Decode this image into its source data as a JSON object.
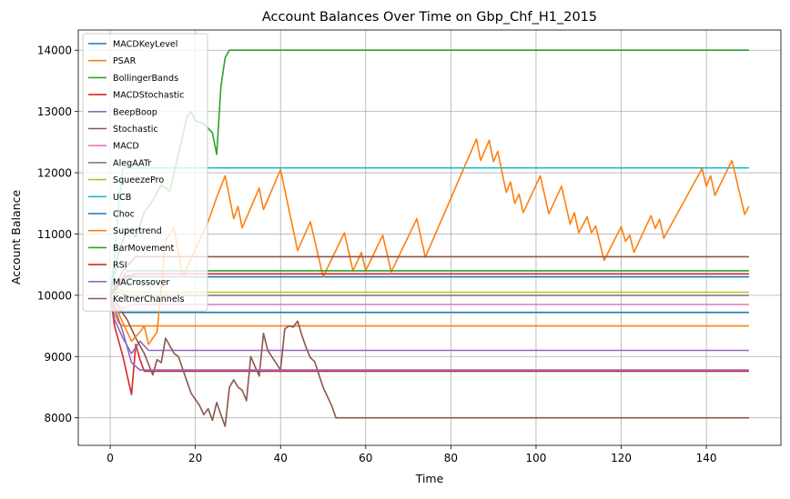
{
  "chart_data": {
    "type": "line",
    "title": "Account Balances Over Time on Gbp_Chf_H1_2015",
    "xlabel": "Time",
    "ylabel": "Account Balance",
    "xlim": [
      -7.5,
      157.5
    ],
    "ylim": [
      7550,
      14330
    ],
    "xticks": [
      0,
      20,
      40,
      60,
      80,
      100,
      120,
      140
    ],
    "yticks": [
      8000,
      9000,
      10000,
      11000,
      12000,
      13000,
      14000
    ],
    "grid": true,
    "legend_position": "upper-left",
    "series": [
      {
        "name": "MACDKeyLevel",
        "color": "#1f77b4",
        "points": [
          [
            0,
            10000
          ],
          [
            1,
            9800
          ],
          [
            2,
            9720
          ],
          [
            150,
            9720
          ]
        ]
      },
      {
        "name": "PSAR",
        "color": "#ff7f0e",
        "points": [
          [
            0,
            10000
          ],
          [
            1,
            9700
          ],
          [
            2,
            9550
          ],
          [
            3,
            9500
          ],
          [
            150,
            9500
          ]
        ]
      },
      {
        "name": "BollingerBands",
        "color": "#2ca02c",
        "points": [
          [
            0,
            10000
          ],
          [
            2,
            10700
          ],
          [
            4,
            11100
          ],
          [
            6,
            10950
          ],
          [
            8,
            11350
          ],
          [
            10,
            11550
          ],
          [
            12,
            11800
          ],
          [
            14,
            11700
          ],
          [
            16,
            12300
          ],
          [
            18,
            12900
          ],
          [
            19,
            13000
          ],
          [
            20,
            12850
          ],
          [
            22,
            12800
          ],
          [
            24,
            12650
          ],
          [
            25,
            12300
          ],
          [
            26,
            13400
          ],
          [
            27,
            13880
          ],
          [
            28,
            14000
          ],
          [
            150,
            14000
          ]
        ]
      },
      {
        "name": "MACDStochastic",
        "color": "#d62728",
        "points": [
          [
            0,
            10000
          ],
          [
            1,
            9500
          ],
          [
            3,
            9000
          ],
          [
            5,
            8380
          ],
          [
            6,
            9200
          ],
          [
            7,
            8950
          ],
          [
            8,
            8760
          ],
          [
            150,
            8760
          ]
        ]
      },
      {
        "name": "BeepBoop",
        "color": "#9467bd",
        "points": [
          [
            0,
            10000
          ],
          [
            1,
            9600
          ],
          [
            3,
            9300
          ],
          [
            5,
            9050
          ],
          [
            7,
            9250
          ],
          [
            9,
            9100
          ],
          [
            150,
            9100
          ]
        ]
      },
      {
        "name": "Stochastic",
        "color": "#8c564b",
        "points": [
          [
            0,
            10000
          ],
          [
            2,
            9800
          ],
          [
            4,
            9600
          ],
          [
            6,
            9300
          ],
          [
            8,
            9050
          ],
          [
            10,
            8700
          ],
          [
            11,
            8950
          ],
          [
            12,
            8900
          ],
          [
            13,
            9300
          ],
          [
            15,
            9050
          ],
          [
            16,
            9000
          ],
          [
            18,
            8600
          ],
          [
            19,
            8400
          ],
          [
            20,
            8300
          ],
          [
            21,
            8200
          ],
          [
            22,
            8050
          ],
          [
            23,
            8150
          ],
          [
            24,
            7960
          ],
          [
            25,
            8250
          ],
          [
            26,
            8050
          ],
          [
            27,
            7860
          ],
          [
            28,
            8500
          ],
          [
            29,
            8620
          ],
          [
            30,
            8500
          ],
          [
            31,
            8450
          ],
          [
            32,
            8280
          ],
          [
            33,
            9000
          ],
          [
            35,
            8680
          ],
          [
            36,
            9380
          ],
          [
            37,
            9100
          ],
          [
            40,
            8780
          ],
          [
            41,
            9450
          ],
          [
            42,
            9500
          ],
          [
            43,
            9480
          ],
          [
            44,
            9580
          ],
          [
            45,
            9350
          ],
          [
            46,
            9150
          ],
          [
            47,
            8980
          ],
          [
            48,
            8920
          ],
          [
            50,
            8500
          ],
          [
            52,
            8200
          ],
          [
            53,
            8000
          ],
          [
            150,
            8000
          ]
        ]
      },
      {
        "name": "MACD",
        "color": "#e377c2",
        "points": [
          [
            0,
            10000
          ],
          [
            1,
            9900
          ],
          [
            3,
            9780
          ],
          [
            5,
            9850
          ],
          [
            150,
            9850
          ]
        ]
      },
      {
        "name": "AlegAATr",
        "color": "#7f7f7f",
        "points": [
          [
            0,
            10000
          ],
          [
            2,
            10050
          ],
          [
            4,
            10000
          ],
          [
            150,
            10000
          ]
        ]
      },
      {
        "name": "SqueezePro",
        "color": "#bcbd22",
        "points": [
          [
            0,
            10000
          ],
          [
            2,
            10100
          ],
          [
            4,
            10050
          ],
          [
            150,
            10050
          ]
        ]
      },
      {
        "name": "UCB",
        "color": "#17becf",
        "points": [
          [
            0,
            10000
          ],
          [
            1,
            10600
          ],
          [
            2,
            11500
          ],
          [
            3,
            12080
          ],
          [
            150,
            12080
          ]
        ]
      },
      {
        "name": "Choc",
        "color": "#1f77b4",
        "points": [
          [
            0,
            10000
          ],
          [
            2,
            10150
          ],
          [
            4,
            10300
          ],
          [
            150,
            10300
          ]
        ]
      },
      {
        "name": "Supertrend",
        "color": "#ff7f0e",
        "points": [
          [
            0,
            10000
          ],
          [
            5,
            9250
          ],
          [
            7,
            9400
          ],
          [
            8,
            9500
          ],
          [
            9,
            9200
          ],
          [
            11,
            9400
          ],
          [
            13,
            10900
          ],
          [
            15,
            11100
          ],
          [
            17,
            10300
          ],
          [
            19,
            10600
          ],
          [
            21,
            10900
          ],
          [
            23,
            11200
          ],
          [
            25,
            11600
          ],
          [
            27,
            11950
          ],
          [
            29,
            11250
          ],
          [
            30,
            11450
          ],
          [
            31,
            11100
          ],
          [
            35,
            11750
          ],
          [
            36,
            11400
          ],
          [
            40,
            12050
          ],
          [
            44,
            10730
          ],
          [
            47,
            11200
          ],
          [
            50,
            10300
          ],
          [
            55,
            11020
          ],
          [
            57,
            10400
          ],
          [
            59,
            10700
          ],
          [
            60,
            10400
          ],
          [
            64,
            10980
          ],
          [
            66,
            10380
          ],
          [
            72,
            11250
          ],
          [
            74,
            10620
          ],
          [
            86,
            12550
          ],
          [
            87,
            12200
          ],
          [
            89,
            12530
          ],
          [
            90,
            12180
          ],
          [
            91,
            12350
          ],
          [
            93,
            11680
          ],
          [
            94,
            11850
          ],
          [
            95,
            11500
          ],
          [
            96,
            11650
          ],
          [
            97,
            11350
          ],
          [
            101,
            11950
          ],
          [
            103,
            11330
          ],
          [
            106,
            11780
          ],
          [
            108,
            11160
          ],
          [
            109,
            11350
          ],
          [
            110,
            11020
          ],
          [
            112,
            11280
          ],
          [
            113,
            11020
          ],
          [
            114,
            11130
          ],
          [
            116,
            10570
          ],
          [
            120,
            11120
          ],
          [
            121,
            10880
          ],
          [
            122,
            10980
          ],
          [
            123,
            10700
          ],
          [
            127,
            11300
          ],
          [
            128,
            11090
          ],
          [
            129,
            11240
          ],
          [
            130,
            10930
          ],
          [
            139,
            12070
          ],
          [
            140,
            11780
          ],
          [
            141,
            11950
          ],
          [
            142,
            11630
          ],
          [
            146,
            12200
          ],
          [
            149,
            11320
          ],
          [
            150,
            11450
          ]
        ]
      },
      {
        "name": "BarMovement",
        "color": "#2ca02c",
        "points": [
          [
            0,
            10000
          ],
          [
            2,
            10200
          ],
          [
            4,
            10400
          ],
          [
            150,
            10400
          ]
        ]
      },
      {
        "name": "RSI",
        "color": "#d62728",
        "points": [
          [
            0,
            10000
          ],
          [
            3,
            10300
          ],
          [
            6,
            10350
          ],
          [
            150,
            10350
          ]
        ]
      },
      {
        "name": "MACrossover",
        "color": "#9467bd",
        "points": [
          [
            0,
            10000
          ],
          [
            3,
            9400
          ],
          [
            5,
            8900
          ],
          [
            7,
            8780
          ],
          [
            150,
            8780
          ]
        ]
      },
      {
        "name": "KeltnerChannels",
        "color": "#8c564b",
        "points": [
          [
            0,
            10000
          ],
          [
            3,
            10400
          ],
          [
            6,
            10630
          ],
          [
            150,
            10630
          ]
        ]
      }
    ]
  }
}
